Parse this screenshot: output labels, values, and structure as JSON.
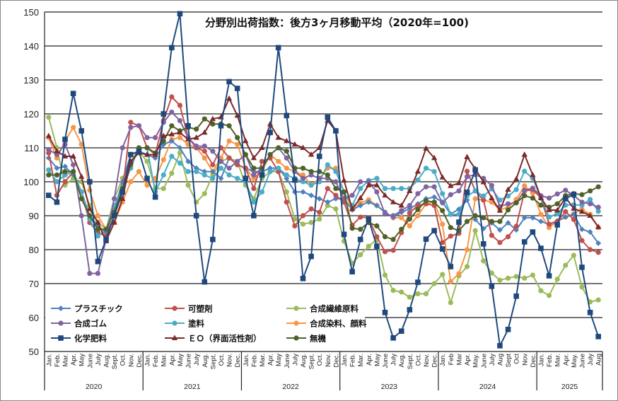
{
  "chart_data": {
    "type": "line",
    "title": "分野別出荷指数：後方3ヶ月移動平均（2020年=100)",
    "xlabel": "",
    "ylabel": "",
    "ylim": [
      50,
      150
    ],
    "yticks": [
      50,
      60,
      70,
      80,
      90,
      100,
      110,
      120,
      130,
      140,
      150
    ],
    "grid": "horizontal",
    "legend_position": "bottom-left (inside plot)",
    "years": [
      "2020",
      "2021",
      "2022",
      "2023",
      "2024",
      "2025"
    ],
    "categories": [
      "Jan.",
      "Feb.",
      "Mar.",
      "Apr.",
      "May",
      "June",
      "July",
      "Aug.",
      "Sept.",
      "Oct.",
      "Nov.",
      "Dec.",
      "Jan.",
      "Feb.",
      "Mar.",
      "Apr.",
      "May",
      "June",
      "July",
      "Aug.",
      "Sept.",
      "Oct.",
      "Nov.",
      "Dec.",
      "Jan.",
      "Feb.",
      "Mar.",
      "Apr.",
      "May",
      "June",
      "July",
      "Aug.",
      "Sept.",
      "Oct.",
      "Nov.",
      "Dec.",
      "Jan.",
      "Feb.",
      "Mar.",
      "Apr.",
      "May",
      "June",
      "July",
      "Aug.",
      "Sept.",
      "Oct.",
      "Nov.",
      "Dec.",
      "Jan.",
      "Feb",
      "Mar",
      "Apr.",
      "May.",
      "June",
      "July",
      "Aug",
      "Sept",
      "Oct",
      "Nov",
      "Dec.",
      "Jan.",
      "Feb.",
      "Mar.",
      "Apr.",
      "May.",
      "June",
      "July",
      "Aug"
    ],
    "series": [
      {
        "name": "プラスチック",
        "color": "#4F81BD",
        "marker": "diamond",
        "values": [
          107,
          104,
          104.5,
          102,
          97,
          90,
          87,
          85,
          92,
          100,
          108,
          109,
          108,
          107,
          111,
          112,
          110,
          106,
          104,
          103,
          103,
          101,
          107,
          105,
          104,
          103,
          103,
          104,
          104,
          101,
          97,
          97,
          96,
          95,
          94,
          95,
          95,
          91.7,
          93,
          94,
          93,
          91,
          89.5,
          91,
          92,
          93.5,
          95,
          95.5,
          94,
          90.5,
          91.9,
          94.6,
          88.9,
          86.2,
          87.9,
          85.8,
          87.9,
          85.8,
          89.4,
          89.4,
          88.3,
          87.5,
          88.5,
          89.6,
          90.4,
          86,
          85.2,
          81.9
        ]
      },
      {
        "name": "可塑剤",
        "color": "#C0504D",
        "marker": "circle",
        "values": [
          108.5,
          96,
          100,
          103,
          97,
          88,
          85,
          84,
          90,
          97,
          117.5,
          116.5,
          110,
          108,
          118,
          125,
          122.5,
          113,
          110,
          109,
          105,
          110,
          107,
          105,
          104,
          98,
          106,
          107,
          103,
          94,
          87,
          90,
          92,
          91,
          98,
          96,
          94,
          87.2,
          89.6,
          89.4,
          83.8,
          79.4,
          79.8,
          85,
          90.8,
          93,
          93.5,
          93,
          82.1,
          84,
          84.8,
          103.1,
          97.3,
          94.6,
          84.2,
          82.1,
          83.8,
          86.9,
          97.3,
          97.7,
          95.2,
          87.5,
          88.3,
          91.2,
          88.9,
          82.7,
          80,
          79.2
        ]
      },
      {
        "name": "合成繊維原料",
        "color": "#9BBB59",
        "marker": "circle",
        "values": [
          119,
          110,
          99,
          101,
          100,
          93,
          88,
          86,
          95,
          101,
          106,
          109,
          106,
          98,
          98,
          102.5,
          108.5,
          99,
          94,
          96.5,
          102,
          106,
          107,
          106,
          99,
          95,
          101,
          103,
          103,
          97,
          89,
          87.5,
          88,
          89,
          93,
          92,
          82.5,
          76,
          78.5,
          81,
          83,
          72.5,
          68,
          67.5,
          66,
          67,
          67,
          70,
          72.7,
          64.4,
          72.3,
          75,
          85.6,
          76.7,
          73.1,
          71,
          71.6,
          72.1,
          71.6,
          72.5,
          67.9,
          66.5,
          71.3,
          75.4,
          78.3,
          69,
          64.6,
          65.2
        ]
      },
      {
        "name": "合成ゴム",
        "color": "#8064A2",
        "marker": "circle",
        "values": [
          109.5,
          108,
          111,
          105,
          90,
          73,
          73,
          83,
          95,
          110,
          116,
          116.5,
          113,
          113,
          117.5,
          120.5,
          118,
          113,
          110.5,
          110.5,
          109,
          106,
          104,
          106,
          108,
          102,
          104,
          108,
          110,
          107,
          103,
          101,
          102,
          101,
          101,
          100,
          95,
          96,
          100,
          100,
          97,
          90.5,
          90,
          91.5,
          93,
          96.5,
          98.5,
          98.5,
          93.8,
          96.2,
          97.3,
          101.5,
          102.1,
          101,
          98.9,
          92.7,
          93.5,
          93.8,
          97.5,
          98.1,
          95.9,
          95.2,
          96.4,
          97.5,
          95.9,
          94,
          93.5,
          92.5
        ]
      },
      {
        "name": "塗料",
        "color": "#4BACC6",
        "marker": "circle",
        "values": [
          103.5,
          100,
          102,
          103,
          97,
          89,
          84,
          86,
          93,
          98,
          104,
          110,
          110,
          97,
          102,
          107.5,
          105.5,
          103,
          103,
          102,
          101,
          104,
          102,
          101,
          100,
          94,
          97,
          103,
          104,
          102,
          101,
          100,
          99,
          100,
          105,
          103,
          97,
          93,
          98,
          100.4,
          101,
          98,
          98,
          98,
          98,
          100.5,
          104,
          103,
          96.5,
          90.4,
          90.4,
          95.8,
          97.3,
          95.8,
          97.9,
          94.6,
          95.8,
          97.7,
          103.1,
          101,
          95.2,
          89.6,
          90.6,
          93.1,
          93.2,
          93.1,
          94.8,
          91.3
        ]
      },
      {
        "name": "合成染料、顔料",
        "color": "#F79646",
        "marker": "circle",
        "values": [
          113,
          107,
          112,
          116,
          111,
          97.5,
          90,
          86,
          88,
          94,
          100,
          103,
          99,
          101,
          106.5,
          112.5,
          113,
          111,
          110,
          107,
          103,
          107,
          112,
          111,
          104,
          101,
          103,
          108,
          106,
          104,
          103,
          102,
          99,
          101,
          104,
          104,
          97,
          92,
          93.7,
          94.7,
          93,
          91,
          89.4,
          89.4,
          87,
          90,
          93.5,
          94,
          87.5,
          70.6,
          72.9,
          80,
          95,
          94.6,
          94,
          91.7,
          92.5,
          94.8,
          98.8,
          96.7,
          90.4,
          86.5,
          88.3,
          89.6,
          90.6,
          91.9,
          90.4,
          86.5
        ]
      },
      {
        "name": "化学肥料",
        "color": "#1F497D",
        "marker": "square",
        "values": [
          96,
          94,
          112.5,
          126,
          115,
          100,
          76.5,
          83,
          90,
          97,
          108,
          109,
          101,
          95.5,
          120,
          139.5,
          149.5,
          116.5,
          90,
          70.5,
          83,
          116.5,
          129.5,
          127.5,
          101,
          90,
          102,
          114.5,
          139.5,
          119.5,
          100.5,
          71.5,
          78,
          107.5,
          119,
          115,
          84.5,
          73.5,
          83,
          89,
          81,
          61.5,
          54,
          56,
          62.3,
          70.4,
          83.1,
          85.6,
          80.2,
          75,
          88.1,
          96.9,
          103.5,
          81.7,
          69.2,
          51.7,
          56.5,
          66.3,
          82.3,
          85.2,
          80.4,
          72.3,
          87.3,
          95,
          96.3,
          74.8,
          61.5,
          54.4
        ]
      },
      {
        "name": "ＥＯ（界面活性剤）",
        "color": "#7B2A2A",
        "marker": "triangle",
        "values": [
          113.5,
          109,
          107.5,
          107.5,
          101.5,
          92,
          88,
          82.5,
          88,
          95,
          106,
          108.5,
          108,
          108,
          113.5,
          114,
          114.5,
          112.5,
          113,
          114.5,
          118.5,
          119,
          124.5,
          119.5,
          112,
          107,
          110,
          117,
          113,
          112,
          111,
          110,
          108,
          110,
          118,
          115,
          100.4,
          92,
          95.2,
          99,
          99,
          96,
          94,
          93,
          97.3,
          103,
          109.8,
          107,
          101.3,
          98.8,
          99.6,
          107.3,
          103.8,
          99.9,
          95.2,
          91.5,
          97.7,
          100.8,
          108,
          102,
          95.2,
          91.7,
          91.6,
          95.4,
          92.1,
          91.2,
          90,
          86.7
        ]
      },
      {
        "name": "無機",
        "color": "#4F6228",
        "marker": "circle",
        "values": [
          102,
          102,
          103,
          103,
          95,
          90,
          86,
          86,
          91,
          98,
          105,
          110,
          110,
          108.5,
          112,
          116.5,
          115,
          116,
          115.5,
          118.5,
          117,
          117,
          116.5,
          113,
          108,
          104,
          104,
          108,
          110,
          109,
          104,
          104,
          103,
          103,
          102,
          98,
          97,
          86.3,
          86,
          88,
          87,
          83.8,
          83,
          86,
          89,
          91.8,
          94.4,
          94,
          91.5,
          86.5,
          85.6,
          88.3,
          90,
          89.4,
          88.3,
          88.3,
          91.7,
          93.8,
          95.9,
          95.2,
          93.1,
          92.5,
          93.5,
          95.9,
          96.5,
          96.2,
          97.3,
          98.5
        ]
      }
    ]
  }
}
